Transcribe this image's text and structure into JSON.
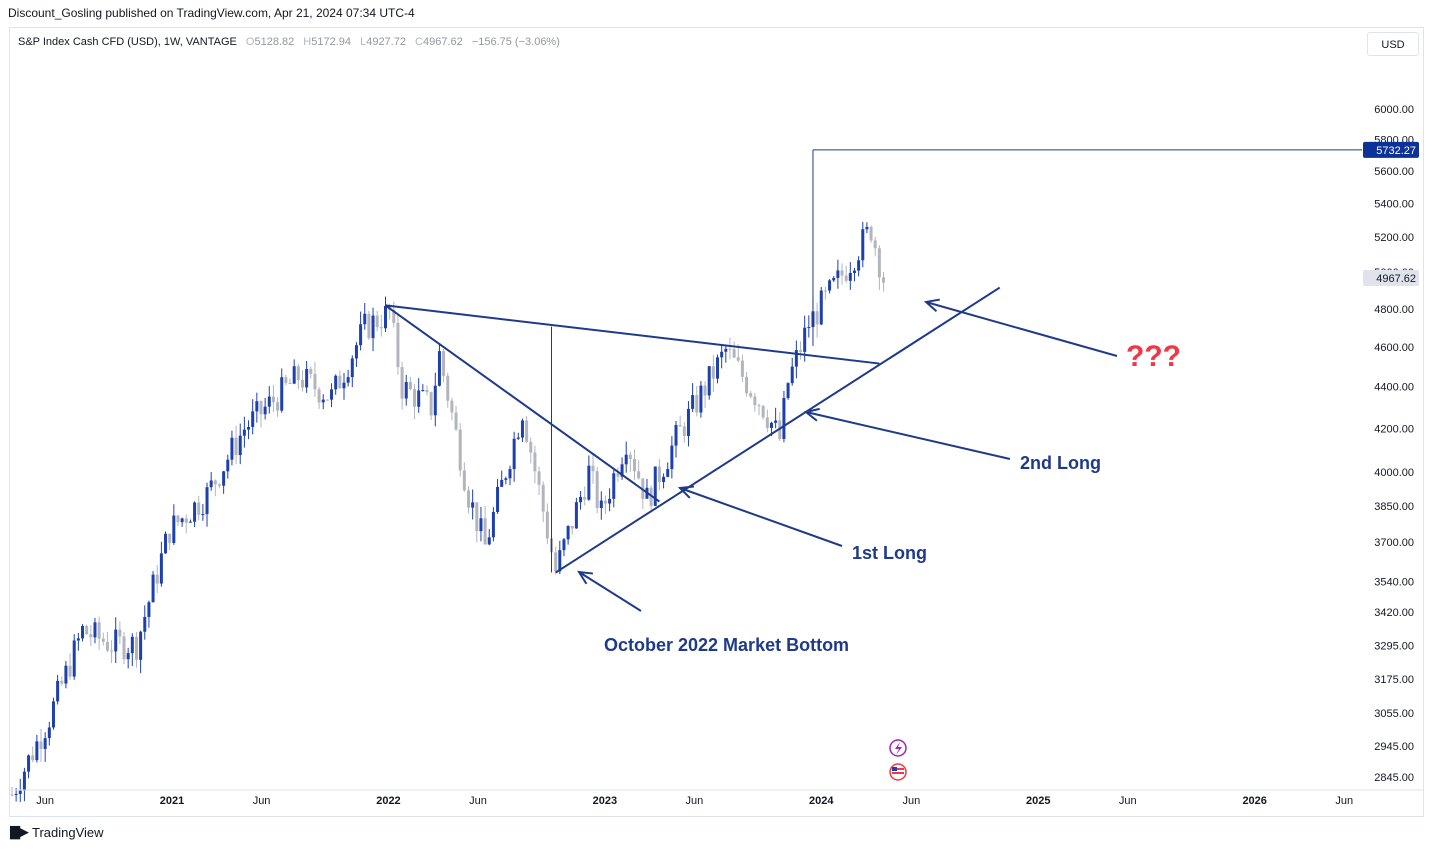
{
  "header": {
    "published": "Discount_Gosling published on TradingView.com, Apr 21, 2024 07:34 UTC-4"
  },
  "legend": {
    "symbol": "S&P Index Cash CFD (USD), 1W, VANTAGE",
    "o_label": "O",
    "o": "5128.82",
    "h_label": "H",
    "h": "5172.94",
    "l_label": "L",
    "l": "4927.72",
    "c_label": "C",
    "c": "4967.62",
    "change": "−156.75 (−3.06%)"
  },
  "currency_button": "USD",
  "footer": {
    "brand": "TradingView"
  },
  "colors": {
    "line": "#1e3a8a",
    "bull": "#1e40af",
    "bear": "#b2b5be",
    "question": "#f23645",
    "axis_text": "#131722"
  },
  "chart_data": {
    "type": "candlestick",
    "ylim": [
      2800,
      6300
    ],
    "x_range": [
      "2020-04-01",
      "2026-07-01"
    ],
    "y_ticks": [
      6000,
      5800,
      5600,
      5400,
      5200,
      5000,
      4800,
      4600,
      4400,
      4200,
      4000,
      3850,
      3700,
      3540,
      3420,
      3295,
      3175,
      3055,
      2945,
      2845
    ],
    "y_tick_labels": [
      "6000.00",
      "5800.00",
      "5600.00",
      "5400.00",
      "5200.00",
      "5000.00",
      "4800.00",
      "4600.00",
      "4400.00",
      "4200.00",
      "4000.00",
      "3850.00",
      "3700.00",
      "3540.00",
      "3420.00",
      "3295.00",
      "3175.00",
      "3055.00",
      "2945.00",
      "2845.00"
    ],
    "x_ticks": [
      {
        "label": "Jun",
        "date": "2020-06-01",
        "bold": false
      },
      {
        "label": "2021",
        "date": "2021-01-01",
        "bold": true
      },
      {
        "label": "Jun",
        "date": "2021-06-01",
        "bold": false
      },
      {
        "label": "2022",
        "date": "2022-01-01",
        "bold": true
      },
      {
        "label": "Jun",
        "date": "2022-06-01",
        "bold": false
      },
      {
        "label": "2023",
        "date": "2023-01-01",
        "bold": true
      },
      {
        "label": "Jun",
        "date": "2023-06-01",
        "bold": false
      },
      {
        "label": "2024",
        "date": "2024-01-01",
        "bold": true
      },
      {
        "label": "Jun",
        "date": "2024-06-01",
        "bold": false
      },
      {
        "label": "2025",
        "date": "2025-01-01",
        "bold": true
      },
      {
        "label": "Jun",
        "date": "2025-06-01",
        "bold": false
      },
      {
        "label": "2026",
        "date": "2026-01-01",
        "bold": true
      },
      {
        "label": "Jun",
        "date": "2026-06-01",
        "bold": false
      }
    ],
    "price_labels": [
      {
        "value": 5732.27,
        "text": "5732.27",
        "style": "dark"
      },
      {
        "value": 4967.62,
        "text": "4967.62",
        "style": "gray"
      }
    ],
    "closes": [
      {
        "date": "2020-04-06",
        "close": 2790
      },
      {
        "date": "2020-06-08",
        "close": 3040
      },
      {
        "date": "2020-08-03",
        "close": 3350
      },
      {
        "date": "2020-09-21",
        "close": 3300
      },
      {
        "date": "2020-11-02",
        "close": 3300
      },
      {
        "date": "2020-12-28",
        "close": 3750
      },
      {
        "date": "2021-03-01",
        "close": 3900
      },
      {
        "date": "2021-05-03",
        "close": 4200
      },
      {
        "date": "2021-08-02",
        "close": 4450
      },
      {
        "date": "2021-09-27",
        "close": 4350
      },
      {
        "date": "2021-11-22",
        "close": 4700
      },
      {
        "date": "2022-01-03",
        "close": 4780
      },
      {
        "date": "2022-01-24",
        "close": 4400
      },
      {
        "date": "2022-03-14",
        "close": 4300
      },
      {
        "date": "2022-03-28",
        "close": 4560
      },
      {
        "date": "2022-05-16",
        "close": 3900
      },
      {
        "date": "2022-06-13",
        "close": 3680
      },
      {
        "date": "2022-08-15",
        "close": 4290
      },
      {
        "date": "2022-10-10",
        "close": 3580
      },
      {
        "date": "2022-12-05",
        "close": 4000
      },
      {
        "date": "2022-12-26",
        "close": 3820
      },
      {
        "date": "2023-02-06",
        "close": 4150
      },
      {
        "date": "2023-03-13",
        "close": 3880
      },
      {
        "date": "2023-05-01",
        "close": 4150
      },
      {
        "date": "2023-07-24",
        "close": 4580
      },
      {
        "date": "2023-09-25",
        "close": 4300
      },
      {
        "date": "2023-10-23",
        "close": 4150
      },
      {
        "date": "2023-11-06",
        "close": 4420
      },
      {
        "date": "2023-12-11",
        "close": 4720
      },
      {
        "date": "2024-01-29",
        "close": 4950
      },
      {
        "date": "2024-03-25",
        "close": 5250
      },
      {
        "date": "2024-04-15",
        "close": 4967
      }
    ],
    "trendlines": [
      {
        "name": "upper-resistance",
        "from": {
          "date": "2021-12-27",
          "value": 4818
        },
        "to": {
          "date": "2024-04-08",
          "value": 4515
        }
      },
      {
        "name": "descending-line",
        "from": {
          "date": "2021-12-27",
          "value": 4818
        },
        "to": {
          "date": "2023-04-03",
          "value": 3870
        }
      },
      {
        "name": "ascending-support",
        "from": {
          "date": "2022-10-10",
          "value": 3575
        },
        "to": {
          "date": "2024-10-28",
          "value": 4915
        }
      },
      {
        "name": "height-line",
        "from": {
          "date": "2022-10-03",
          "value": 3575
        },
        "to": {
          "date": "2022-10-03",
          "value": 4705
        }
      },
      {
        "name": "target-vertical",
        "from": {
          "date": "2023-12-18",
          "value": 4605
        },
        "to": {
          "date": "2023-12-18",
          "value": 5732.27
        }
      },
      {
        "name": "target-horizontal",
        "from": {
          "date": "2023-12-18",
          "value": 5732.27
        },
        "to": {
          "date": "2026-07-01",
          "value": 5732.27
        }
      }
    ],
    "annotations": [
      {
        "id": "question",
        "text": "???"
      },
      {
        "id": "second-long",
        "text": "2nd Long"
      },
      {
        "id": "first-long",
        "text": "1st Long"
      },
      {
        "id": "bottom",
        "text": "October 2022 Market Bottom"
      }
    ]
  }
}
